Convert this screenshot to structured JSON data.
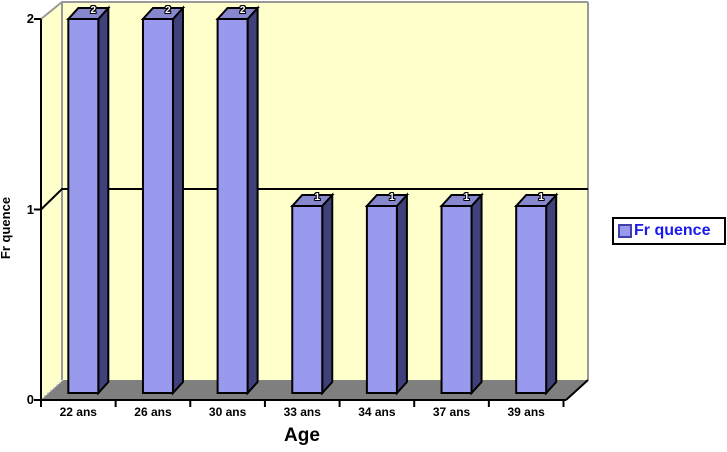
{
  "chart_data": {
    "type": "bar",
    "style": "3d-column",
    "title": "",
    "categories": [
      "22 ans",
      "26 ans",
      "30 ans",
      "33 ans",
      "34 ans",
      "37 ans",
      "39 ans"
    ],
    "series": [
      {
        "name": "Fr quence",
        "values": [
          2,
          2,
          2,
          1,
          1,
          1,
          1
        ]
      }
    ],
    "data_labels_shown": true,
    "xlabel": "Age",
    "ylabel": "Fr quence",
    "y_ticks": [
      "0",
      "1",
      "2"
    ],
    "ylim": [
      0,
      2
    ],
    "grid": "horizontal-major",
    "legend": {
      "position": "right",
      "entries": [
        {
          "label": "Fr quence",
          "swatch_color": "#9999EE"
        }
      ]
    }
  },
  "colors": {
    "background": "#FFFFFF",
    "wall": "#FFFFCC",
    "floor": "#7F7F7F",
    "floor_edge_light": "#C8C8C8",
    "bar_front": "#9999EE",
    "bar_top": "#8787CE",
    "bar_side": "#40407A",
    "bar_outline": "#000000",
    "axis": "#000000",
    "wall_edge": "#999999",
    "legend_text": "#1A1AEE"
  }
}
